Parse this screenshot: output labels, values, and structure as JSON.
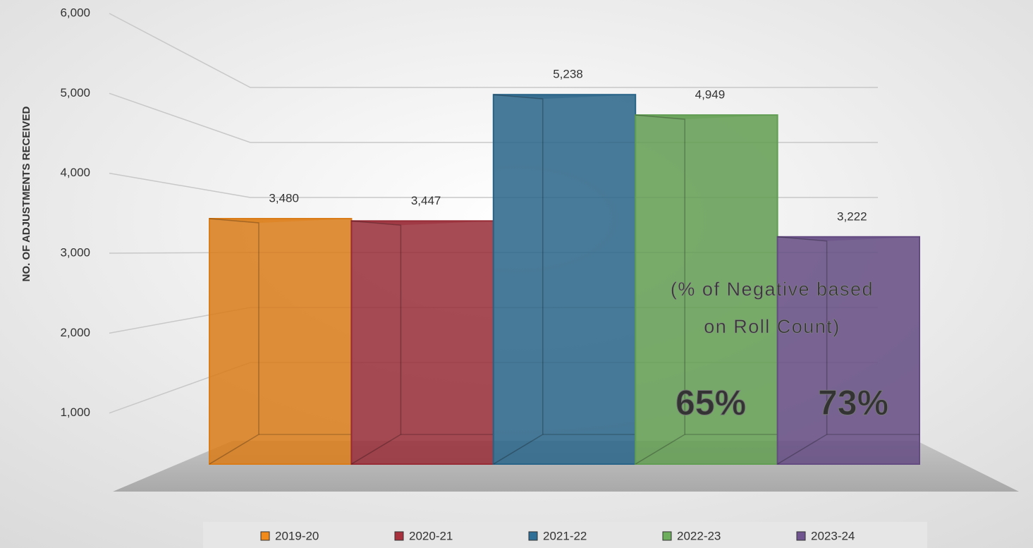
{
  "chart_data": {
    "type": "bar3d",
    "y_axis_label": "NO. OF ADJUSTMENTS RECEIVED",
    "ylim": [
      0,
      6000
    ],
    "yticks": [
      {
        "value": 1000,
        "label": "1,000"
      },
      {
        "value": 2000,
        "label": "2,000"
      },
      {
        "value": 3000,
        "label": "3,000"
      },
      {
        "value": 4000,
        "label": "4,000"
      },
      {
        "value": 5000,
        "label": "5,000"
      },
      {
        "value": 6000,
        "label": "6,000"
      }
    ],
    "grid": true,
    "legend": "bottom",
    "series": [
      {
        "name": "2019-20",
        "color": "#f28a1a",
        "values": [
          3480
        ],
        "value_labels": [
          "3,480"
        ]
      },
      {
        "name": "2020-21",
        "color": "#a8303c",
        "values": [
          3447
        ],
        "value_labels": [
          "3,447"
        ]
      },
      {
        "name": "2021-22",
        "color": "#2d6f97",
        "values": [
          5238
        ],
        "value_labels": [
          "5,238"
        ]
      },
      {
        "name": "2022-23",
        "color": "#6cae5b",
        "values": [
          4949
        ],
        "value_labels": [
          "4,949"
        ]
      },
      {
        "name": "2023-24",
        "color": "#6f5490",
        "values": [
          3222
        ],
        "value_labels": [
          "3,222"
        ]
      }
    ],
    "annotations": [
      "(% of Negative based",
      "on Roll Count)",
      "65%",
      "73%"
    ]
  }
}
